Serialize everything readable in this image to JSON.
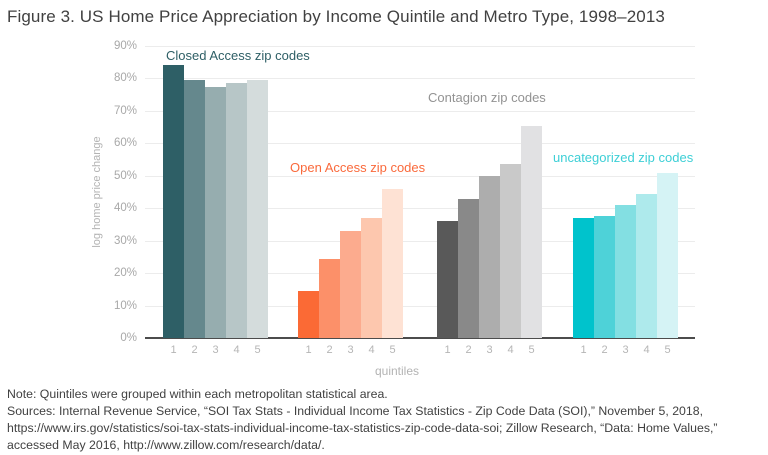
{
  "figure": {
    "title": "Figure 3. US Home Price Appreciation by Income Quintile and Metro Type, 1998–2013",
    "note": "Note: Quintiles were grouped within each metropolitan statistical area.",
    "sources": "Sources: Internal Revenue Service, “SOI Tax Stats - Individual Income Tax Statistics - Zip Code Data (SOI),” November 5, 2018, https://www.irs.gov/statistics/soi-tax-stats-individual-income-tax-statistics-zip-code-data-soi; Zillow Research, “Data: Home Values,” accessed May 2016, http://www.zillow.com/research/data/."
  },
  "chart_data": {
    "type": "bar",
    "title": "US Home Price Appreciation by Income Quintile and Metro Type, 1998–2013",
    "xlabel": "quintiles",
    "ylabel": "log home price change",
    "unit": "percent",
    "ylim": [
      0,
      90
    ],
    "ytick_labels": [
      "0%",
      "10%",
      "20%",
      "30%",
      "40%",
      "50%",
      "60%",
      "70%",
      "80%",
      "90%"
    ],
    "categories": [
      "1",
      "2",
      "3",
      "4",
      "5"
    ],
    "grid": true,
    "legend_position": "inline-group-labels",
    "series": [
      {
        "name": "Closed Access zip codes",
        "values": [
          84,
          79.5,
          77.5,
          78.5,
          79.5
        ],
        "label_color": "#2e5f66",
        "bar_colors": [
          "#2e5f66",
          "#65888d",
          "#96adaf",
          "#b7c6c7",
          "#d4dcdc"
        ]
      },
      {
        "name": "Open Access zip codes",
        "values": [
          14.5,
          24.5,
          33,
          37,
          46
        ],
        "label_color": "#fa6a3c",
        "bar_colors": [
          "#fb6a35",
          "#fc9069",
          "#fcab8e",
          "#fdc7ae",
          "#fee2d4"
        ]
      },
      {
        "name": "Contagion zip codes",
        "values": [
          36,
          43,
          50,
          53.5,
          65.5
        ],
        "label_color": "#939393",
        "bar_colors": [
          "#595959",
          "#898989",
          "#adadad",
          "#c9c9c9",
          "#e1e1e3"
        ]
      },
      {
        "name": "uncategorized zip codes",
        "values": [
          37,
          37.5,
          41,
          44.5,
          51
        ],
        "label_color": "#3dcfd6",
        "bar_colors": [
          "#00c3cc",
          "#4ed2d8",
          "#83dfe2",
          "#aeeaec",
          "#d5f3f5"
        ]
      }
    ]
  }
}
